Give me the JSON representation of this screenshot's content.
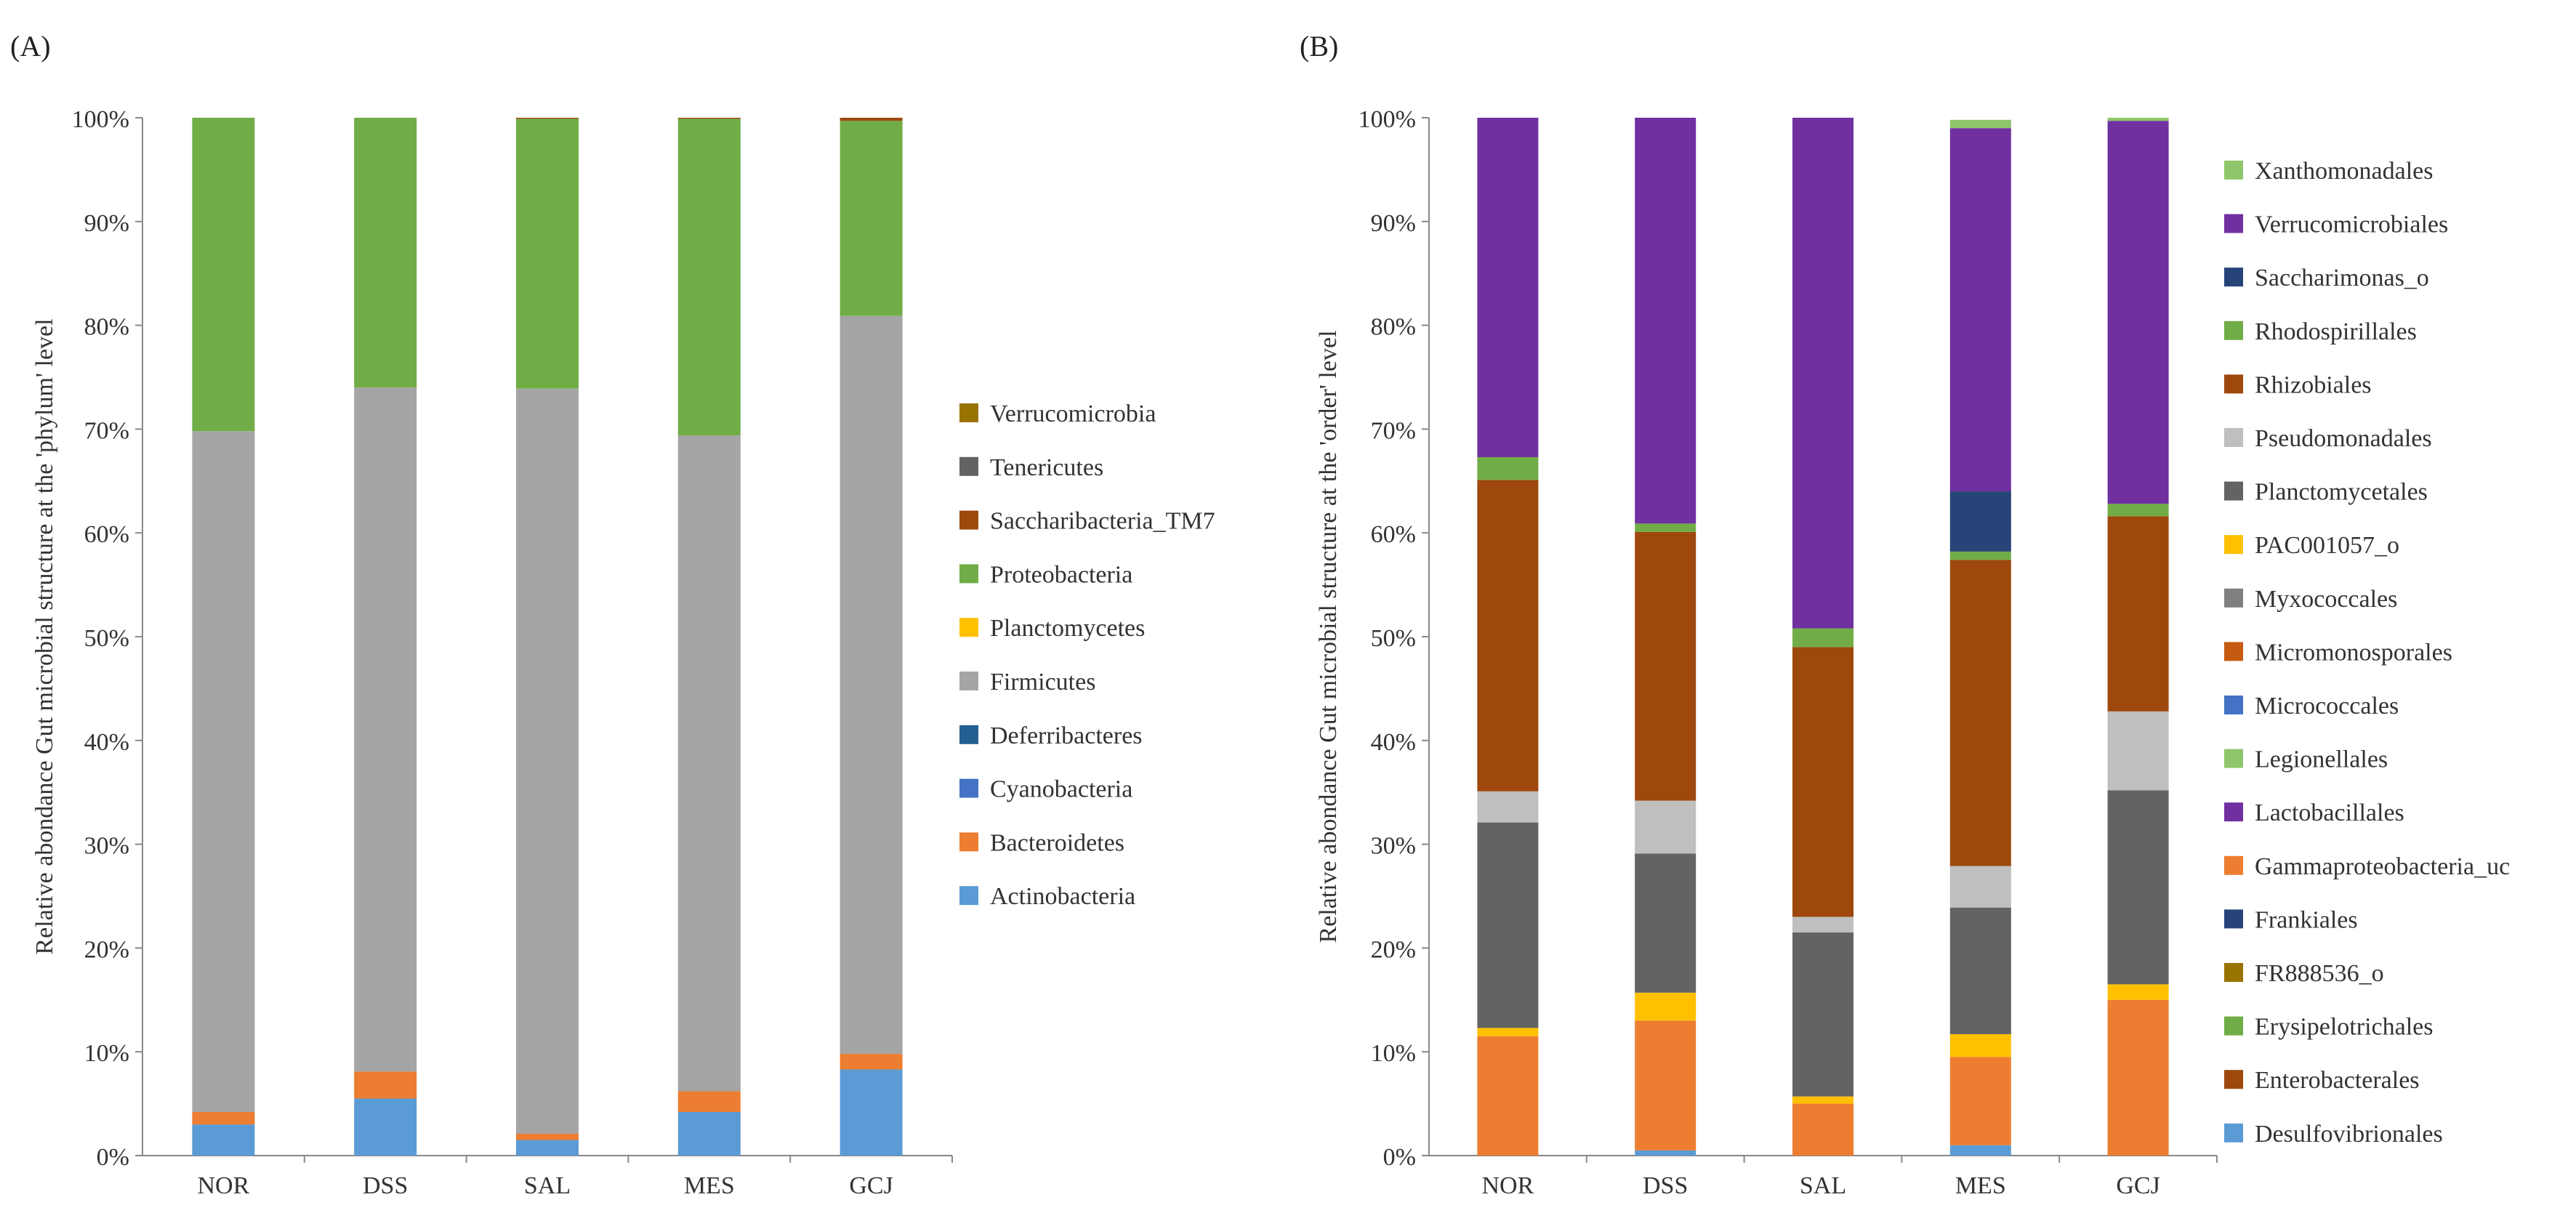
{
  "chart_data": [
    {
      "type": "bar",
      "stacked": true,
      "normalized": true,
      "panel_label": "(A)",
      "title": "",
      "xlabel": "",
      "ylabel": "Relative abondance Gut microbial structure at the 'phylum' level",
      "ylim": [
        0,
        100
      ],
      "yticks": [
        "0%",
        "10%",
        "20%",
        "30%",
        "40%",
        "50%",
        "60%",
        "70%",
        "80%",
        "90%",
        "100%"
      ],
      "grid": false,
      "legend_position": "right",
      "categories": [
        "NOR",
        "DSS",
        "SAL",
        "MES",
        "GCJ"
      ],
      "series": [
        {
          "name": "Actinobacteria",
          "color": "#5b9bd5",
          "values": [
            3.0,
            5.5,
            1.5,
            4.2,
            8.3
          ]
        },
        {
          "name": "Bacteroidetes",
          "color": "#ed7d31",
          "values": [
            1.2,
            2.6,
            0.6,
            2.0,
            1.5
          ]
        },
        {
          "name": "Cyanobacteria",
          "color": "#4472c4",
          "values": [
            0,
            0,
            0,
            0,
            0
          ]
        },
        {
          "name": "Deferribacteres",
          "color": "#255e91",
          "values": [
            0,
            0,
            0,
            0,
            0
          ]
        },
        {
          "name": "Firmicutes",
          "color": "#a5a5a5",
          "values": [
            65.6,
            65.9,
            71.8,
            63.2,
            71.1
          ]
        },
        {
          "name": "Planctomycetes",
          "color": "#ffc000",
          "values": [
            0,
            0,
            0,
            0,
            0
          ]
        },
        {
          "name": "Proteobacteria",
          "color": "#70ad47",
          "values": [
            30.2,
            26.0,
            26.0,
            30.5,
            18.8
          ]
        },
        {
          "name": "Saccharibacteria_TM7",
          "color": "#9e480e",
          "values": [
            0,
            0,
            0.1,
            0.1,
            0.3
          ]
        },
        {
          "name": "Tenericutes",
          "color": "#636363",
          "values": [
            0,
            0,
            0,
            0,
            0
          ]
        },
        {
          "name": "Verrucomicrobia",
          "color": "#997300",
          "values": [
            0,
            0,
            0,
            0,
            0
          ]
        }
      ]
    },
    {
      "type": "bar",
      "stacked": true,
      "normalized": true,
      "panel_label": "(B)",
      "title": "",
      "xlabel": "",
      "ylabel": "Relative abondance Gut microbial structure at the 'order' level",
      "ylim": [
        0,
        100
      ],
      "yticks": [
        "0%",
        "10%",
        "20%",
        "30%",
        "40%",
        "50%",
        "60%",
        "70%",
        "80%",
        "90%",
        "100%"
      ],
      "grid": false,
      "legend_position": "right",
      "categories": [
        "NOR",
        "DSS",
        "SAL",
        "MES",
        "GCJ"
      ],
      "series": [
        {
          "name": "Desulfovibrionales",
          "color": "#5b9bd5",
          "values": [
            0,
            0.5,
            0,
            1.0,
            0
          ]
        },
        {
          "name": "Enterobacterales",
          "color": "#9e480e",
          "values": [
            0,
            0,
            0,
            0,
            0
          ]
        },
        {
          "name": "Erysipelotrichales",
          "color": "#70ad47",
          "values": [
            0,
            0,
            0,
            0,
            0
          ]
        },
        {
          "name": "FR888536_o",
          "color": "#997300",
          "values": [
            0,
            0,
            0,
            0,
            0
          ]
        },
        {
          "name": "Frankiales",
          "color": "#264478",
          "values": [
            0,
            0,
            0,
            0,
            0
          ]
        },
        {
          "name": "Gammaproteobacteria_uc",
          "color": "#ed7d31",
          "values": [
            11.5,
            12.5,
            5.0,
            8.5,
            15.0
          ]
        },
        {
          "name": "Lactobacillales",
          "color": "#7030a0",
          "values": [
            0,
            0,
            0,
            0,
            0
          ]
        },
        {
          "name": "Legionellales",
          "color": "#8fc66b",
          "values": [
            0,
            0,
            0,
            0,
            0
          ]
        },
        {
          "name": "Micrococcales",
          "color": "#4472c4",
          "values": [
            0,
            0,
            0,
            0,
            0
          ]
        },
        {
          "name": "Micromonosporales",
          "color": "#c55a11",
          "values": [
            0,
            0,
            0,
            0,
            0
          ]
        },
        {
          "name": "Myxococcales",
          "color": "#7f7f7f",
          "values": [
            0,
            0,
            0,
            0,
            0
          ]
        },
        {
          "name": "PAC001057_o",
          "color": "#ffc000",
          "values": [
            0.8,
            2.7,
            0.7,
            2.2,
            1.5
          ]
        },
        {
          "name": "Planctomycetales",
          "color": "#636363",
          "values": [
            19.8,
            13.4,
            15.8,
            12.2,
            18.7
          ]
        },
        {
          "name": "Pseudomonadales",
          "color": "#bfbfbf",
          "values": [
            3.0,
            5.1,
            1.5,
            4.0,
            7.6
          ]
        },
        {
          "name": "Rhizobiales",
          "color": "#9e480e",
          "values": [
            30.0,
            25.9,
            26.0,
            29.5,
            18.8
          ]
        },
        {
          "name": "Rhodospirillales",
          "color": "#70ad47",
          "values": [
            2.2,
            0.8,
            1.8,
            0.8,
            1.2
          ]
        },
        {
          "name": "Saccharimonas_o",
          "color": "#264478",
          "values": [
            0,
            0,
            0,
            5.8,
            0
          ]
        },
        {
          "name": "Verrucomicrobiales",
          "color": "#7030a0",
          "values": [
            32.7,
            39.1,
            49.2,
            35.0,
            36.9
          ]
        },
        {
          "name": "Xanthomonadales",
          "color": "#8fc66b",
          "values": [
            0,
            0,
            0,
            0.8,
            0.3
          ]
        }
      ]
    }
  ]
}
